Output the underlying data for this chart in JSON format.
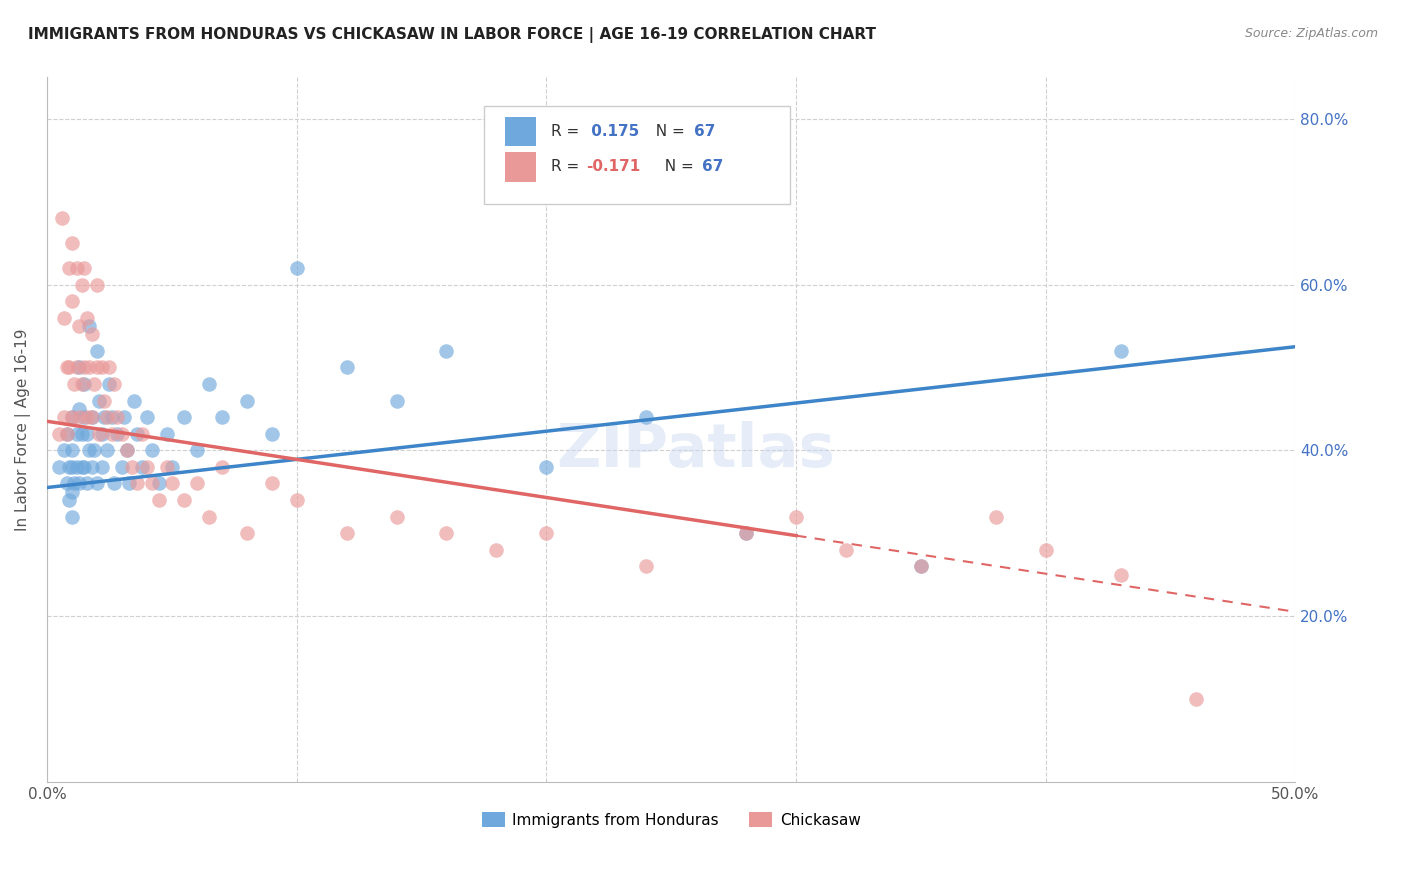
{
  "title": "IMMIGRANTS FROM HONDURAS VS CHICKASAW IN LABOR FORCE | AGE 16-19 CORRELATION CHART",
  "source": "Source: ZipAtlas.com",
  "ylabel": "In Labor Force | Age 16-19",
  "r_honduras": 0.175,
  "r_chickasaw": -0.171,
  "n_honduras": 67,
  "n_chickasaw": 67,
  "legend_label_1": "Immigrants from Honduras",
  "legend_label_2": "Chickasaw",
  "color_honduras": "#6fa8dc",
  "color_chickasaw": "#ea9999",
  "color_line_honduras": "#3d85c8",
  "color_line_chickasaw": "#e06666",
  "watermark": "ZIPatlas",
  "xlim": [
    0.0,
    0.5
  ],
  "ylim": [
    0.0,
    0.85
  ],
  "line_h_x0": 0.0,
  "line_h_y0": 0.355,
  "line_h_x1": 0.5,
  "line_h_y1": 0.525,
  "line_c_x0": 0.0,
  "line_c_y0": 0.435,
  "line_c_x1": 0.5,
  "line_c_y1": 0.205,
  "line_c_solid_end": 0.3,
  "honduras_x": [
    0.005,
    0.007,
    0.008,
    0.008,
    0.009,
    0.009,
    0.01,
    0.01,
    0.01,
    0.01,
    0.01,
    0.011,
    0.012,
    0.012,
    0.013,
    0.013,
    0.013,
    0.014,
    0.014,
    0.015,
    0.015,
    0.015,
    0.016,
    0.016,
    0.017,
    0.017,
    0.018,
    0.018,
    0.019,
    0.02,
    0.02,
    0.021,
    0.022,
    0.022,
    0.023,
    0.024,
    0.025,
    0.026,
    0.027,
    0.028,
    0.03,
    0.031,
    0.032,
    0.033,
    0.035,
    0.036,
    0.038,
    0.04,
    0.042,
    0.045,
    0.048,
    0.05,
    0.055,
    0.06,
    0.065,
    0.07,
    0.08,
    0.09,
    0.1,
    0.12,
    0.14,
    0.16,
    0.2,
    0.24,
    0.28,
    0.35,
    0.43
  ],
  "honduras_y": [
    0.38,
    0.4,
    0.36,
    0.42,
    0.34,
    0.38,
    0.4,
    0.44,
    0.38,
    0.35,
    0.32,
    0.36,
    0.42,
    0.38,
    0.5,
    0.45,
    0.36,
    0.42,
    0.38,
    0.48,
    0.44,
    0.38,
    0.42,
    0.36,
    0.55,
    0.4,
    0.44,
    0.38,
    0.4,
    0.52,
    0.36,
    0.46,
    0.42,
    0.38,
    0.44,
    0.4,
    0.48,
    0.44,
    0.36,
    0.42,
    0.38,
    0.44,
    0.4,
    0.36,
    0.46,
    0.42,
    0.38,
    0.44,
    0.4,
    0.36,
    0.42,
    0.38,
    0.44,
    0.4,
    0.48,
    0.44,
    0.46,
    0.42,
    0.62,
    0.5,
    0.46,
    0.52,
    0.38,
    0.44,
    0.3,
    0.26,
    0.52
  ],
  "chickasaw_x": [
    0.005,
    0.006,
    0.007,
    0.007,
    0.008,
    0.008,
    0.009,
    0.009,
    0.01,
    0.01,
    0.01,
    0.011,
    0.012,
    0.012,
    0.013,
    0.013,
    0.014,
    0.014,
    0.015,
    0.015,
    0.016,
    0.016,
    0.017,
    0.018,
    0.018,
    0.019,
    0.02,
    0.02,
    0.021,
    0.022,
    0.023,
    0.024,
    0.025,
    0.026,
    0.027,
    0.028,
    0.03,
    0.032,
    0.034,
    0.036,
    0.038,
    0.04,
    0.042,
    0.045,
    0.048,
    0.05,
    0.055,
    0.06,
    0.065,
    0.07,
    0.08,
    0.09,
    0.1,
    0.12,
    0.14,
    0.16,
    0.18,
    0.2,
    0.24,
    0.28,
    0.3,
    0.32,
    0.35,
    0.38,
    0.4,
    0.43,
    0.46
  ],
  "chickasaw_y": [
    0.42,
    0.68,
    0.44,
    0.56,
    0.5,
    0.42,
    0.62,
    0.5,
    0.65,
    0.58,
    0.44,
    0.48,
    0.62,
    0.5,
    0.55,
    0.44,
    0.6,
    0.48,
    0.62,
    0.5,
    0.56,
    0.44,
    0.5,
    0.54,
    0.44,
    0.48,
    0.6,
    0.5,
    0.42,
    0.5,
    0.46,
    0.44,
    0.5,
    0.42,
    0.48,
    0.44,
    0.42,
    0.4,
    0.38,
    0.36,
    0.42,
    0.38,
    0.36,
    0.34,
    0.38,
    0.36,
    0.34,
    0.36,
    0.32,
    0.38,
    0.3,
    0.36,
    0.34,
    0.3,
    0.32,
    0.3,
    0.28,
    0.3,
    0.26,
    0.3,
    0.32,
    0.28,
    0.26,
    0.32,
    0.28,
    0.25,
    0.1
  ]
}
